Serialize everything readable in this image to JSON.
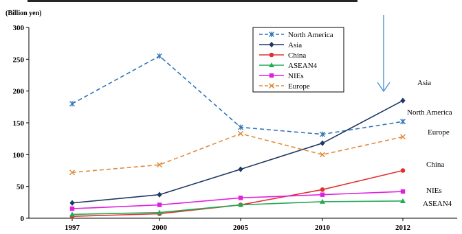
{
  "chart_data": {
    "type": "line",
    "unit_label": "(Billion yen)",
    "x": [
      "1997",
      "2000",
      "2005",
      "2010",
      "2012"
    ],
    "ylim": [
      0,
      300
    ],
    "yticks": [
      0,
      50,
      100,
      150,
      200,
      250,
      300
    ],
    "grid": false,
    "legend_position": "top-center",
    "series": [
      {
        "name": "North America",
        "values": [
          180,
          255,
          143,
          132,
          152
        ],
        "color": "#2e75b6",
        "dash": "dashed",
        "marker": "asterisk",
        "end_label": "North America"
      },
      {
        "name": "Asia",
        "values": [
          24,
          37,
          77,
          118,
          185
        ],
        "color": "#1f3864",
        "dash": "solid",
        "marker": "diamond",
        "end_label": "Asia"
      },
      {
        "name": "China",
        "values": [
          3,
          7,
          21,
          45,
          75
        ],
        "color": "#e03030",
        "dash": "solid",
        "marker": "circle",
        "end_label": "China"
      },
      {
        "name": "ASEAN4",
        "values": [
          6,
          9,
          21,
          26,
          27
        ],
        "color": "#22aa55",
        "dash": "solid",
        "marker": "triangle",
        "end_label": "ASEAN4"
      },
      {
        "name": "NIEs",
        "values": [
          15,
          21,
          32,
          37,
          42
        ],
        "color": "#e020e0",
        "dash": "solid",
        "marker": "square",
        "end_label": "NIEs"
      },
      {
        "name": "Europe",
        "values": [
          72,
          84,
          133,
          100,
          128
        ],
        "color": "#e08a3c",
        "dash": "dashed",
        "marker": "x",
        "end_label": "Europe"
      }
    ]
  }
}
